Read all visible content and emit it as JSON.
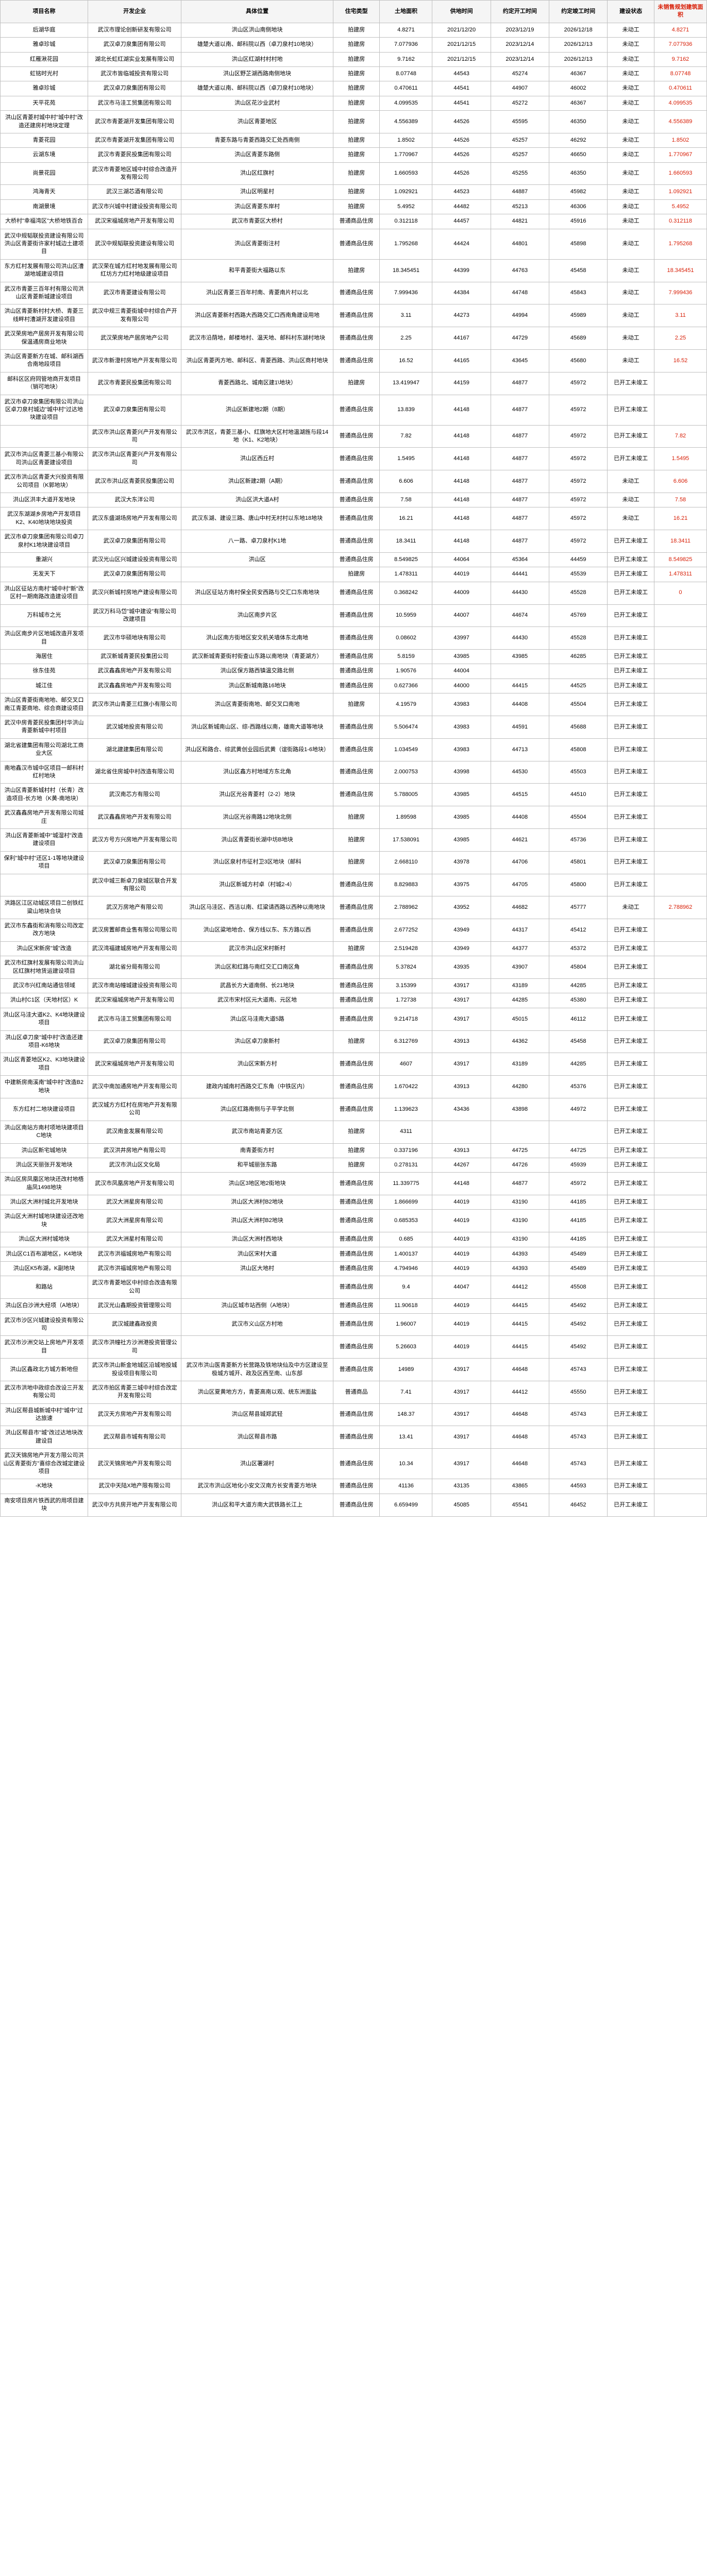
{
  "headers": [
    "项目名称",
    "开发企业",
    "具体位置",
    "住宅类型",
    "土地面积",
    "供地时间",
    "约定开工时间",
    "约定竣工时间",
    "建设状态",
    "未销售规划建筑面积"
  ],
  "rows": [
    [
      "后湖华庭",
      "武汉市理论创新研发有限公司",
      "洪山区洪山南侧地块",
      "拍建房",
      "4.8271",
      "2021/12/20",
      "2023/12/19",
      "2026/12/18",
      "未动工",
      "4.8271"
    ],
    [
      "雅卓珍城",
      "武汉卓刀泉集团有限公司",
      "雄楚大道以南、邮科院以西（卓刀泉村10地块）",
      "拍建房",
      "7.077936",
      "2021/12/15",
      "2023/12/14",
      "2026/12/13",
      "未动工",
      "7.077936"
    ],
    [
      "红雁湫花园",
      "湖北长虹红湖实业发展有限公司",
      "洪山区红湖村村村地",
      "拍建房",
      "9.7162",
      "2021/12/15",
      "2023/12/14",
      "2026/12/13",
      "未动工",
      "9.7162"
    ],
    [
      "虹铭时光村",
      "武汉市皆临城投资有限公司",
      "洪山区野芷湖西路南侧地块",
      "拍建房",
      "8.07748",
      "44543",
      "45274",
      "46367",
      "未动工",
      "8.07748"
    ],
    [
      "雅卓珍城",
      "武汉卓刀泉集团有限公司",
      "雄楚大道以南、邮科院以西（卓刀泉村10地块）",
      "拍建房",
      "0.470611",
      "44541",
      "44907",
      "46002",
      "未动工",
      "0.470611"
    ],
    [
      "天平花苑",
      "武汉市马洼工贸集团有限公司",
      "洪山区花沙业武村",
      "拍建房",
      "4.099535",
      "44541",
      "45272",
      "46367",
      "未动工",
      "4.099535"
    ],
    [
      "洪山区青菱村城中村\"城中村\"改造还建房村地块定理",
      "武汉市青菱湖开发集团有限公司",
      "洪山区青菱地区",
      "拍建房",
      "4.556389",
      "44526",
      "45595",
      "46350",
      "未动工",
      "4.556389"
    ],
    [
      "青菱花园",
      "武汉市青菱湖开发集团有限公司",
      "青菱东路与青菱西路交汇处西南侧",
      "拍建房",
      "1.8502",
      "44526",
      "45257",
      "46292",
      "未动工",
      "1.8502"
    ],
    [
      "云湖东境",
      "武汉市青菱民投集团有限公司",
      "洪山区青菱东路侧",
      "拍建房",
      "1.770967",
      "44526",
      "45257",
      "46650",
      "未动工",
      "1.770967"
    ],
    [
      "尚景花园",
      "武汉市青菱地区城中村综合改造开发有限公司",
      "洪山区红旗村",
      "拍建房",
      "1.660593",
      "44526",
      "45255",
      "46350",
      "未动工",
      "1.660593"
    ],
    [
      "鸿海青天",
      "武汉三湖芯酒有限公司",
      "洪山区明星村",
      "拍建房",
      "1.092921",
      "44523",
      "44887",
      "45982",
      "未动工",
      "1.092921"
    ],
    [
      "南湖景境",
      "武汉市兴城中村建设投资有限公司",
      "洪山区青菱东岸村",
      "拍建房",
      "5.4952",
      "44482",
      "45213",
      "46306",
      "未动工",
      "5.4952"
    ],
    [
      "大桥村\"幸福湾区\"大桥地铁百合",
      "武汉宋福城房地产开发有限公司",
      "武汉市青菱区大桥村",
      "普通商品住房",
      "0.312118",
      "44457",
      "44821",
      "45916",
      "未动工",
      "0.312118"
    ],
    [
      "武汉中规韬联投资建设有限公司洪山区青菱街许家村城边土建项目",
      "武汉中规韬联投资建设有限公司",
      "洪山区青菱街注村",
      "普通商品住房",
      "1.795268",
      "44424",
      "44801",
      "45898",
      "未动工",
      "1.795268"
    ],
    [
      "东方红村发展有限公司洪山区漕湖地城建设项目",
      "武汉荣在城方红村地发展有限公司红坊方力红村地级建设项目",
      "和平青菱街大福路以东",
      "拍建房",
      "18.345451",
      "44399",
      "44763",
      "45458",
      "未动工",
      "18.345451"
    ],
    [
      "武汉市青菱三百年村有限公司洪山区青菱新城建设项目",
      "武汉市青菱建设有限公司",
      "洪山区青菱三百年村南、青菱南片村以北",
      "普通商品住房",
      "7.999436",
      "44384",
      "44748",
      "45843",
      "未动工",
      "7.999436"
    ],
    [
      "洪山区青菱新村村大桥、青菱三线畔村漕湖开发建设项目",
      "武汉中规三青菱街城中村综合产开发有限公司",
      "洪山区青菱新村西路大西路交汇口西南角建设用地",
      "普通商品住房",
      "3.11",
      "44273",
      "44994",
      "45989",
      "未动工",
      "3.11"
    ],
    [
      "武汉荣房地产居房开发有限公司保温通房商业地块",
      "武汉荣房地产居房地产公司",
      "武汉市沿荫地，邮楼地村、温天地、邮科村东湖村地块",
      "普通商品住房",
      "2.25",
      "44167",
      "44729",
      "45689",
      "未动工",
      "2.25"
    ],
    [
      "洪山区青菱新方在城、邮科湖西合南地段项目",
      "武汉市新澄村房地产开发有限公司",
      "洪山区青菱丙方地、邮科区、青菱西路、洪山区商村地块",
      "普通商品住房",
      "16.52",
      "44165",
      "43645",
      "45680",
      "未动工",
      "16.52"
    ],
    [
      "邮科区区府同管地商开发项目（销可地块）",
      "武汉市青菱民投集团有限公司",
      "青菱西路北、城南区建1\\地块）",
      "拍建房",
      "13.419947",
      "44159",
      "44877",
      "45972",
      "已开工未竣工",
      ""
    ],
    [
      "武汉市卓刀泉集团有限公司洪山区卓刀泉村城边\"城中村\"过达地块建设项目",
      "武汉卓刀泉集团有限公司",
      "洪山区新建地2期（8期）",
      "普通商品住房",
      "13.839",
      "44148",
      "44877",
      "45972",
      "已开工未竣工",
      ""
    ],
    [
      "",
      "武汉市洪山区青菱兴产开发有限公司",
      "武汉市洪区，青菱三基小、红旗地大区村地温湖旌与段14地（K1、K2地块）",
      "普通商品住房",
      "7.82",
      "44148",
      "44877",
      "45972",
      "已开工未竣工",
      "7.82"
    ],
    [
      "武汉市洪山区青菱三基小有限公司洪山区青菱建设项目",
      "武汉市洪山区青菱兴产开发有限公司",
      "洪山区西丘村",
      "普通商品住房",
      "1.5495",
      "44148",
      "44877",
      "45972",
      "已开工未竣工",
      "1.5495"
    ],
    [
      "武汉市洪山区青菱大兴投资有限公司项目（K郭地块）",
      "武汉市洪山区青菱民投集团公司",
      "洪山区新建2期（A期）",
      "普通商品住房",
      "6.606",
      "44148",
      "44877",
      "45972",
      "未动工",
      "6.606"
    ],
    [
      "洪山区洪丰大道开发地块",
      "武汉大东洋公司",
      "洪山区洪大道A村",
      "普通商品住房",
      "7.58",
      "44148",
      "44877",
      "45972",
      "未动工",
      "7.58"
    ],
    [
      "武汉东湖湖乡房地产开发项目K2、K40地块地块投资",
      "武汉东盛湖场房地产开发有限公司",
      "武汉东湖、建设三路、唐山中村无村村以东地18地块",
      "普通商品住房",
      "16.21",
      "44148",
      "44877",
      "45972",
      "未动工",
      "16.21"
    ],
    [
      "武汉市卓刀泉集团有限公司卓刀泉村K1地块建设项目",
      "武汉卓刀泉集团有限公司",
      "八一路、卓刀泉村K1地",
      "普通商品住房",
      "18.3411",
      "44148",
      "44877",
      "45972",
      "已开工未竣工",
      "18.3411"
    ],
    [
      "重湖兴",
      "武汉光山区兴城建设投资有限公司",
      "洪山区",
      "普通商品住房",
      "8.549825",
      "44064",
      "45364",
      "44459",
      "已开工未竣工",
      "8.549825"
    ],
    [
      "无发天下",
      "武汉卓刀泉集团有限公司",
      "",
      "拍建房",
      "1.478311",
      "44019",
      "44441",
      "45539",
      "已开工未竣工",
      "1.478311"
    ],
    [
      "洪山区征站方南村\"城中村\"新\"改区村一期南路改造建设项目",
      "武汉兴新城村房地产建设有限公司",
      "洪山区征站方南村保全民安西路与交汇口东南地块",
      "普通商品住房",
      "0.368242",
      "44009",
      "44430",
      "45528",
      "已开工未竣工",
      "0"
    ],
    [
      "万科城市之光",
      "武汉万科马岱\"城中建设\"有限公司改建项目",
      "洪山区南步片区",
      "普通商品住房",
      "10.5959",
      "44007",
      "44674",
      "45769",
      "已开工未竣工",
      ""
    ],
    [
      "洪山区南步片区地城改造开发项目",
      "武汉市华硕地块有限公司",
      "洪山区南方街地区安文机关墙体东北南地",
      "普通商品住房",
      "0.08602",
      "43997",
      "44430",
      "45528",
      "已开工未竣工",
      ""
    ],
    [
      "海居住",
      "武汉新城青菱民投集团公司",
      "武汉新城青菱街村街查山东路以南地块（青菱湖方）",
      "普通商品住房",
      "5.8159",
      "43985",
      "43985",
      "46285",
      "已开工未竣工",
      ""
    ],
    [
      "徐东佳苑",
      "武汉鑫鑫房地产开发有限公司",
      "洪山区保方路西镇温交路北侧",
      "普通商品住房",
      "1.90576",
      "44004",
      "",
      "",
      "已开工未竣工",
      ""
    ],
    [
      "城江佳",
      "武汉鑫鑫房地产开发有限公司",
      "洪山区新城南路16地块",
      "普通商品住房",
      "0.627366",
      "44000",
      "44415",
      "44525",
      "已开工未竣工",
      ""
    ],
    [
      "洪山区青菱街南地地、邮交叉口南江青菱商地、综合商建设项目",
      "武汉市洪山青菱三红旗小有限公司",
      "洪山区青菱街南地、邮交叉口南地",
      "拍建房",
      "4.19579",
      "43983",
      "44408",
      "45504",
      "已开工未竣工",
      ""
    ],
    [
      "武汉中房青菱民投集团村华洪山青菱新城中村项目",
      "武汉城地投资有限公司",
      "洪山区新城南山区、综-西路线以南，雄南大道等地块",
      "普通商品住房",
      "5.506474",
      "43983",
      "44591",
      "45688",
      "已开工未竣工",
      ""
    ],
    [
      "湖北省建集团有限公司湖北工商业大区",
      "湖北建建集团有限公司",
      "洪山区和路合、综武黄创业园后武黄（谊街路段1-6地块）",
      "普通商品住房",
      "1.034549",
      "43983",
      "44713",
      "45808",
      "已开工未竣工",
      ""
    ],
    [
      "南地鑫汉市城中区项目一邮科村红村地块",
      "湖北省住房城中村改造有限公司",
      "洪山区鑫方村地域方东北角",
      "普通商品住房",
      "2.000753",
      "43998",
      "44530",
      "45503",
      "已开工未竣工",
      ""
    ],
    [
      "洪山区青菱新城村村（长青）改造项目-长方地（K黄-南地块）",
      "武汉南芯方有限公司",
      "洪山区光谷青菱村（2-2）地块",
      "普通商品住房",
      "5.788005",
      "43985",
      "44515",
      "44510",
      "已开工未竣工",
      ""
    ],
    [
      "武汉鑫鑫房地产开发有限公司城庄",
      "武汉鑫鑫房地产开发有限公司",
      "洪山区光谷南路12地块北侧",
      "拍建房",
      "1.89598",
      "43985",
      "44408",
      "45504",
      "已开工未竣工",
      ""
    ],
    [
      "洪山区青菱新城中\"城湿村\"改造建设项目",
      "武汉方号方兴房地产开发有限公司",
      "洪山区青菱街长湖中坊B地块",
      "拍建房",
      "17.538091",
      "43985",
      "44621",
      "45736",
      "已开工未竣工",
      ""
    ],
    [
      "保利\"城中村\"还区1-1等地块建设项目",
      "武汉卓刀泉集团有限公司",
      "洪山区泉村市征村卫3区地块（邮科",
      "拍建房",
      "2.668110",
      "43978",
      "44706",
      "45801",
      "已开工未竣工",
      ""
    ],
    [
      "",
      "武汉中城三新卓刀泉城区联合开发有限公司",
      "洪山区新城方村卓（村城2-4）",
      "普通商品住房",
      "8.829883",
      "43975",
      "44705",
      "45800",
      "已开工未竣工",
      ""
    ],
    [
      "洪路区江区动城区项目二创铁红粱山地块合块",
      "武汉万房地产有限公司",
      "洪山区马洼区、西洁以南、红粱请西路以西种以南地块",
      "普通商品住房",
      "2.788962",
      "43952",
      "44682",
      "45777",
      "未动工",
      "2.788962"
    ],
    [
      "武汉市东鑫街和消有限公司改定改方地块",
      "武汉房置邮商业售有限公司限公司",
      "洪山区粱地地合、保方线以东、东方路以西",
      "普通商品住房",
      "2.677252",
      "43949",
      "44317",
      "45412",
      "已开工未竣工",
      ""
    ],
    [
      "洪山区宋新房\"城\"改造",
      "武汉湾福建城房地产开发有限公司",
      "武汉市洪山区宋村新村",
      "拍建房",
      "2.519428",
      "43949",
      "44377",
      "45372",
      "已开工未竣工",
      ""
    ],
    [
      "武汉市红旗村发展有限公司洪山区红旗村地赁运建设项目",
      "湖北省分局有限公司",
      "洪山区和红路与南红交汇口南区角",
      "普通商品住房",
      "5.37824",
      "43935",
      "43907",
      "45804",
      "已开工未竣工",
      ""
    ],
    [
      "武汉市兴红南站通信领域",
      "武汉市南站幢城建设投资有限公司",
      "武昌长方大道南侧、长21地块",
      "普通商品住房",
      "3.15399",
      "43917",
      "43189",
      "44285",
      "已开工未竣工",
      ""
    ],
    [
      "洪山村C1区（天地村区）K",
      "武汉宋福城房地产开发有限公司",
      "武汉市宋村区元大道南、元区地",
      "普通商品住房",
      "1.72738",
      "43917",
      "44285",
      "45380",
      "已开工未竣工",
      ""
    ],
    [
      "洪山区马洼大道K2、K4地块建设项目",
      "武汉市马洼工贸集团有限公司",
      "洪山区马洼南大道5路",
      "普通商品住房",
      "9.214718",
      "43917",
      "45015",
      "46112",
      "已开工未竣工",
      ""
    ],
    [
      "洪山区卓刀泉\"城中村\"改造还建项目-K6地块",
      "武汉卓刀泉集团有限公司",
      "洪山区卓刀泉新村",
      "拍建房",
      "6.312769",
      "43913",
      "44362",
      "45458",
      "已开工未竣工",
      ""
    ],
    [
      "洪山区青菱地区K2、K3地块建设项目",
      "武汉宋福城房地产开发有限公司",
      "洪山区宋新方村",
      "普通商品住房",
      "4607",
      "43917",
      "43189",
      "44285",
      "已开工未竣工",
      ""
    ],
    [
      "中建新房南溪南\"城中村\"改造B2地块",
      "武汉中南加通房地产开发有限公司",
      "建政内城南村西路交汇东角（中铁区内）",
      "普通商品住房",
      "1.670422",
      "43913",
      "44280",
      "45376",
      "已开工未竣工",
      ""
    ],
    [
      "东方红村二地块建设项目",
      "武汉城方方红村在房地产开发有限公司",
      "洪山区红路南侧与子平学北侧",
      "普通商品住房",
      "1.139623",
      "43436",
      "43898",
      "44972",
      "已开工未竣工",
      ""
    ],
    [
      "洪山区南站方南村项地块建项目C地块",
      "武汉南金发展有限公司",
      "武汉市南站青菱方区",
      "拍建房",
      "4311",
      "",
      "",
      "",
      "已开工未竣工",
      ""
    ],
    [
      "洪山区新宅城地块",
      "武汉洪井房地产有限公司",
      "南青菱街方村",
      "拍建房",
      "0.337196",
      "43913",
      "44725",
      "44725",
      "已开工未竣工",
      ""
    ],
    [
      "洪山区天丽张开发地块",
      "武汉市洪山区文化局",
      "和平城丽张东路",
      "拍建房",
      "0.278131",
      "44267",
      "44726",
      "45939",
      "已开工未竣工",
      ""
    ],
    [
      "洪山区房凤凰区地块还改村地梧庙凤1498地块",
      "武汉市凤凰房地产开发有限公司",
      "洪山区3地区地2街地块",
      "普通商品住房",
      "11.339775",
      "44148",
      "44877",
      "45972",
      "已开工未竣工",
      ""
    ],
    [
      "洪山区大洲村城北开发地块",
      "武汉大洲星房有限公司",
      "洪山区大洲村B2地块",
      "普通商品住房",
      "1.866699",
      "44019",
      "43190",
      "44185",
      "已开工未竣工",
      ""
    ],
    [
      "洪山区大洲村城地块建设还改地块",
      "武汉大洲星房有限公司",
      "洪山区大洲村B2地块",
      "普通商品住房",
      "0.685353",
      "44019",
      "43190",
      "44185",
      "已开工未竣工",
      ""
    ],
    [
      "洪山区大洲村城地块",
      "武汉大洲星村有限公司",
      "洪山区大洲村西地块",
      "普通商品住房",
      "0.685",
      "44019",
      "43190",
      "44185",
      "已开工未竣工",
      ""
    ],
    [
      "洪山区C1百布湖地区，K4地块",
      "武汉市洪福城房地产有限公司",
      "洪山区宋村大道",
      "普通商品住房",
      "1.400137",
      "44019",
      "44393",
      "45489",
      "已开工未竣工",
      ""
    ],
    [
      "洪山区K5布湖，K副地块",
      "武汉市洪福城房地产有限公司",
      "洪山区大地村",
      "普通商品住房",
      "4.794946",
      "44019",
      "44393",
      "45489",
      "已开工未竣工",
      ""
    ],
    [
      "和路站",
      "武汉市青菱地区中村综合改造有限公司",
      "",
      "普通商品住房",
      "9.4",
      "44047",
      "44412",
      "45508",
      "已开工未竣工",
      ""
    ],
    [
      "洪山区白沙洲大经项（A地块）",
      "武汉光山鑫期投资管理限公司",
      "洪山区城市站西侧（A地块）",
      "普通商品住房",
      "11.90618",
      "44019",
      "44415",
      "45492",
      "已开工未竣工",
      ""
    ],
    [
      "武汉市沙区兴城建设投资有限公司",
      "武汉城建鑫政投资",
      "武汉市义山区方村地",
      "普通商品住房",
      "1.96007",
      "44019",
      "44415",
      "45492",
      "已开工未竣工",
      ""
    ],
    [
      "武汉市沙洲交站上房地产开发项目",
      "武汉市洪幢社方沙洲港投资管理公司",
      "",
      "普通商品住房",
      "5.26603",
      "44019",
      "44415",
      "45492",
      "已开工未竣工",
      ""
    ],
    [
      "洪山区鑫政北方城方新地但",
      "武汉市洪山新金地城区沿城地投城投设项目有限公司",
      "武汉市洪山医青菱新方长营路及铁地块仙及中方区建设至极城方城开、政及区西至南、山东部",
      "普通商品住房",
      "14989",
      "43917",
      "44648",
      "45743",
      "已开工未竣工",
      ""
    ],
    [
      "武汉市洪地中政综合改设三开发有限公司",
      "武汉市拍区青菱三城中村综合改定开发有限公司",
      "洪山区夏黄地方方，青菱高南以观、统东洲面盐",
      "普通商品",
      "7.41",
      "43917",
      "44412",
      "45550",
      "已开工未竣工",
      ""
    ],
    [
      "洪山区帮县城新城中村\"城中\"过达旅速",
      "武汉天方房地产开发有限公司",
      "洪山区帮县城郑武轻",
      "普通商品住房",
      "148.37",
      "43917",
      "44648",
      "45743",
      "已开工未竣工",
      ""
    ],
    [
      "洪山区帮县市\"城\"改过达地块改建设目",
      "武汉帮县市城有有限公司",
      "洪山区帮县市路",
      "普通商品住房",
      "13.41",
      "43917",
      "44648",
      "45743",
      "已开工未竣工",
      ""
    ],
    [
      "武汉天锦房地产开发方限公司洪山区青菱街方\"喜综合改城定建设项目",
      "武汉天锦房地产开发有限公司",
      "洪山区署湖村",
      "普通商品住房",
      "10.34",
      "43917",
      "44648",
      "45743",
      "已开工未竣工",
      ""
    ],
    [
      "-K地块",
      "武汉中天陆X地产限有限公司",
      "武汉市洪山区地化小安文汉南方长安青菱方地块",
      "普通商品住房",
      "41136",
      "43135",
      "43865",
      "44593",
      "已开工未竣工",
      ""
    ],
    [
      "南安项目房片铁西武的用项目建块",
      "武汉中方共房开地产开发有限公司",
      "洪山区和平大道方南大武铁路长江上",
      "普通商品住房",
      "6.659499",
      "45085",
      "45541",
      "46452",
      "已开工未竣工",
      ""
    ]
  ]
}
